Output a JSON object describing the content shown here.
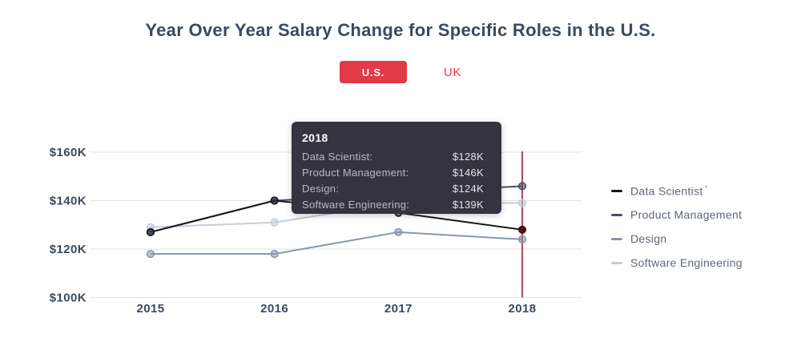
{
  "header": {
    "title": "Year Over Year Salary Change for Specific Roles in the U.S."
  },
  "toggle": {
    "us_label": "U.S.",
    "uk_label": "UK",
    "active": "U.S.",
    "accent_color": "#e23a46"
  },
  "tooltip": {
    "title": "2018",
    "rows": [
      {
        "label": "Data Scientist:",
        "value": "$128K"
      },
      {
        "label": "Product Management:",
        "value": "$146K"
      },
      {
        "label": "Design:",
        "value": "$124K"
      },
      {
        "label": "Software Engineering:",
        "value": "$139K"
      }
    ]
  },
  "legend": {
    "items": [
      {
        "label": "Data Scientist",
        "annotation": "*",
        "color": "#16181d"
      },
      {
        "label": "Product Management",
        "annotation": "",
        "color": "#474f63"
      },
      {
        "label": "Design",
        "annotation": "",
        "color": "#8996ab"
      },
      {
        "label": "Software Engineering",
        "annotation": "",
        "color": "#c5cdd9"
      }
    ]
  },
  "chart_data": {
    "type": "line",
    "title": "Year Over Year Salary Change for Specific Roles in the U.S.",
    "categories": [
      "2015",
      "2016",
      "2017",
      "2018"
    ],
    "series": [
      {
        "name": "Data Scientist",
        "color": "#16181d",
        "values": [
          127,
          140,
          135,
          128
        ]
      },
      {
        "name": "Product Management",
        "color": "#474f63",
        "values": [
          127,
          140,
          143,
          146
        ]
      },
      {
        "name": "Design",
        "color": "#8996ab",
        "values": [
          118,
          118,
          127,
          124
        ]
      },
      {
        "name": "Software Engineering",
        "color": "#c5cdd9",
        "values": [
          129,
          131,
          139,
          139
        ]
      }
    ],
    "y_ticks": [
      {
        "value": 160,
        "label": "$160K"
      },
      {
        "value": 140,
        "label": "$140K"
      },
      {
        "value": 120,
        "label": "$120K"
      },
      {
        "value": 100,
        "label": "$100K"
      }
    ],
    "ylim": [
      100,
      160
    ],
    "grid": "horizontal",
    "grid_color": "#e4e7eb",
    "legend_position": "right",
    "marker": {
      "category": "2018",
      "color": "#97212f"
    },
    "highlight": {
      "series": "Data Scientist",
      "category": "2018",
      "dot_color": "#4a1019"
    }
  }
}
